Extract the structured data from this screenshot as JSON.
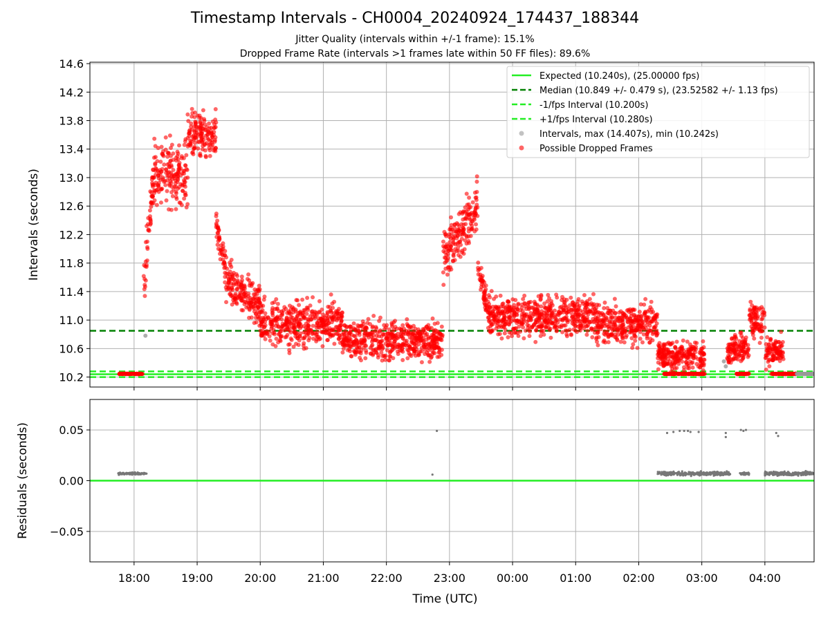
{
  "figure": {
    "title": "Timestamp Intervals - CH0004_20240924_174437_188344",
    "subtitle_jitter": "Jitter Quality (intervals within +/-1 frame): 15.1%",
    "subtitle_dropped": "Dropped Frame Rate (intervals >1 frames late within 50 FF files): 89.6%"
  },
  "colors": {
    "expected": "#22ee22",
    "median": "#008000",
    "interval_bounds": "#22ee22",
    "intervals": "#999999",
    "dropped": "#ff0000",
    "residuals": "#777777",
    "grid": "#b0b0b0"
  },
  "chart_data": [
    {
      "type": "scatter",
      "panel": "intervals",
      "ylabel": "Intervals (seconds)",
      "xlabel": "",
      "ylim": [
        10.06,
        14.62
      ],
      "yticks": [
        10.2,
        10.6,
        11.0,
        11.4,
        11.8,
        12.2,
        12.6,
        13.0,
        13.4,
        13.8,
        14.2,
        14.6
      ],
      "ytick_labels": [
        "10.2",
        "10.6",
        "11.0",
        "11.4",
        "11.8",
        "12.2",
        "12.6",
        "13.0",
        "13.4",
        "13.8",
        "14.2",
        "14.6"
      ],
      "xlim_hours_utc": [
        17.3,
        28.78
      ],
      "xticks_hours": [
        18,
        19,
        20,
        21,
        22,
        23,
        24,
        25,
        26,
        27,
        28
      ],
      "grid": true,
      "legend_position": "top-right",
      "reference_lines": [
        {
          "name": "Expected (10.240s), (25.00000 fps)",
          "y": 10.24,
          "style": "solid",
          "color": "#22ee22"
        },
        {
          "name": "Median (10.849 +/- 0.479 s), (23.52582 +/- 1.13 fps)",
          "y": 10.849,
          "style": "dashed",
          "color": "#008000"
        },
        {
          "name": "-1/fps Interval (10.200s)",
          "y": 10.2,
          "style": "dashed",
          "color": "#22ee22"
        },
        {
          "name": "+1/fps Interval (10.280s)",
          "y": 10.28,
          "style": "dashed",
          "color": "#22ee22"
        }
      ],
      "scatter_series": [
        {
          "name": "Intervals, max (14.407s), min (10.242s)",
          "color": "#999999",
          "max": 14.407,
          "min": 10.242
        },
        {
          "name": "Possible Dropped Frames",
          "color": "#ff0000"
        }
      ],
      "segments": [
        {
          "start": 17.75,
          "end": 18.15,
          "kind": "baseline",
          "level": 10.245
        },
        {
          "start": 18.15,
          "end": 18.32,
          "kind": "ramp",
          "from": 11.4,
          "to": 13.2,
          "spread": 0.5
        },
        {
          "start": 18.32,
          "end": 18.85,
          "kind": "band",
          "center": 13.05,
          "spread": 0.65
        },
        {
          "start": 18.85,
          "end": 19.3,
          "kind": "band",
          "center": 13.6,
          "spread": 0.45
        },
        {
          "start": 19.3,
          "end": 19.45,
          "kind": "ramp",
          "from": 12.4,
          "to": 11.7,
          "spread": 0.3
        },
        {
          "start": 19.45,
          "end": 20.0,
          "kind": "ramp",
          "from": 11.6,
          "to": 11.2,
          "spread": 0.4
        },
        {
          "start": 20.0,
          "end": 21.3,
          "kind": "band",
          "center": 10.95,
          "spread": 0.45
        },
        {
          "start": 21.3,
          "end": 22.9,
          "kind": "band",
          "center": 10.72,
          "spread": 0.38
        },
        {
          "start": 22.9,
          "end": 23.45,
          "kind": "ramp",
          "from": 11.9,
          "to": 12.6,
          "spread": 0.55
        },
        {
          "start": 23.45,
          "end": 23.6,
          "kind": "ramp",
          "from": 11.8,
          "to": 11.2,
          "spread": 0.3
        },
        {
          "start": 23.6,
          "end": 25.3,
          "kind": "band",
          "center": 11.05,
          "spread": 0.4
        },
        {
          "start": 25.3,
          "end": 26.3,
          "kind": "band",
          "center": 10.95,
          "spread": 0.4
        },
        {
          "start": 26.3,
          "end": 27.05,
          "kind": "band",
          "center": 10.5,
          "spread": 0.3
        },
        {
          "start": 26.4,
          "end": 27.05,
          "kind": "baseline",
          "level": 10.245
        },
        {
          "start": 27.4,
          "end": 27.75,
          "kind": "band",
          "center": 10.6,
          "spread": 0.3
        },
        {
          "start": 27.55,
          "end": 27.75,
          "kind": "baseline",
          "level": 10.245
        },
        {
          "start": 27.75,
          "end": 28.0,
          "kind": "band",
          "center": 11.0,
          "spread": 0.35
        },
        {
          "start": 28.0,
          "end": 28.3,
          "kind": "band",
          "center": 10.55,
          "spread": 0.3
        },
        {
          "start": 28.1,
          "end": 28.5,
          "kind": "baseline",
          "level": 10.245
        },
        {
          "start": 28.5,
          "end": 28.78,
          "kind": "baseline",
          "level": 10.245,
          "color": "#999999"
        }
      ]
    },
    {
      "type": "scatter",
      "panel": "residuals",
      "ylabel": "Residuals (seconds)",
      "xlabel": "Time (UTC)",
      "ylim": [
        -0.08,
        0.08
      ],
      "yticks": [
        -0.05,
        0.0,
        0.05
      ],
      "ytick_labels": [
        "−0.05",
        "0.00",
        "0.05"
      ],
      "xlim_hours_utc": [
        17.3,
        28.78
      ],
      "xticks_hours": [
        18,
        19,
        20,
        21,
        22,
        23,
        24,
        25,
        26,
        27,
        28
      ],
      "xtick_labels": [
        "18:00",
        "19:00",
        "20:00",
        "21:00",
        "22:00",
        "23:00",
        "00:00",
        "01:00",
        "02:00",
        "03:00",
        "04:00"
      ],
      "grid": true,
      "reference_lines": [
        {
          "name": "Expected",
          "y": 0.0,
          "style": "solid",
          "color": "#22ee22"
        }
      ],
      "segments": [
        {
          "start": 17.75,
          "end": 18.2,
          "level": 0.007,
          "spread": 0.002
        },
        {
          "start": 26.3,
          "end": 27.45,
          "level": 0.007,
          "spread": 0.004
        },
        {
          "start": 27.6,
          "end": 27.75,
          "level": 0.007,
          "spread": 0.003
        },
        {
          "start": 28.0,
          "end": 28.78,
          "level": 0.007,
          "spread": 0.004
        }
      ],
      "points": [
        {
          "x": 22.8,
          "y": 0.049
        },
        {
          "x": 22.73,
          "y": 0.006
        },
        {
          "x": 26.45,
          "y": 0.047
        },
        {
          "x": 26.55,
          "y": 0.048
        },
        {
          "x": 26.65,
          "y": 0.049
        },
        {
          "x": 26.72,
          "y": 0.049
        },
        {
          "x": 26.78,
          "y": 0.049
        },
        {
          "x": 26.82,
          "y": 0.048
        },
        {
          "x": 26.95,
          "y": 0.048
        },
        {
          "x": 27.38,
          "y": 0.047
        },
        {
          "x": 27.38,
          "y": 0.043
        },
        {
          "x": 27.62,
          "y": 0.05
        },
        {
          "x": 27.66,
          "y": 0.049
        },
        {
          "x": 27.7,
          "y": 0.05
        },
        {
          "x": 28.18,
          "y": 0.047
        },
        {
          "x": 28.21,
          "y": 0.044
        }
      ]
    }
  ]
}
